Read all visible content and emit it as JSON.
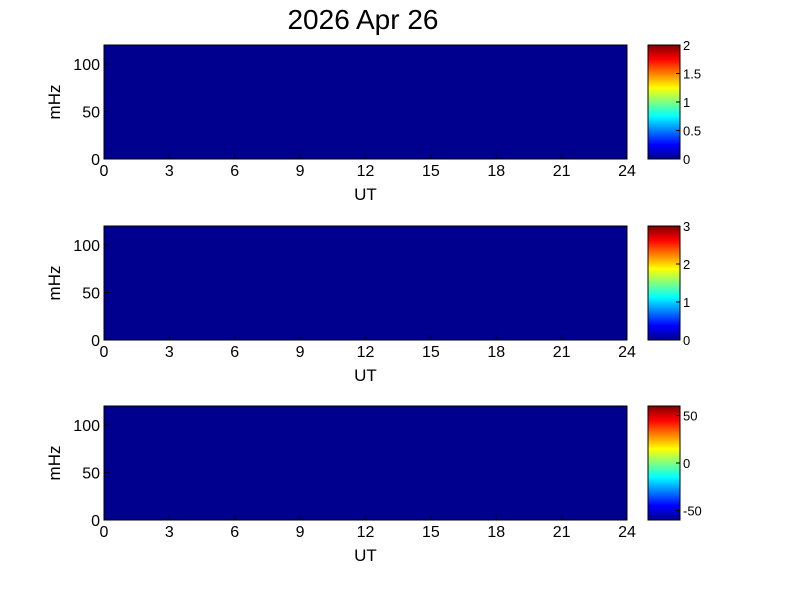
{
  "title": "2026 Apr 26",
  "colors": {
    "background": "#ffffff",
    "colormap": "jet",
    "jet_stops": [
      "#00008f",
      "#0000ff",
      "#00ffff",
      "#ffff00",
      "#ff0000",
      "#800000"
    ]
  },
  "chart_data": [
    {
      "type": "heatmap",
      "xlabel": "UT",
      "ylabel": "mHz",
      "xlim": [
        0,
        24
      ],
      "ylim": [
        0,
        120
      ],
      "xticks": [
        0,
        3,
        6,
        9,
        12,
        15,
        18,
        21,
        24
      ],
      "yticks": [
        0,
        50,
        100
      ],
      "z_uniform_value": 0,
      "colorbar": {
        "range": [
          0,
          2
        ],
        "ticks": [
          0,
          0.5,
          1,
          1.5,
          2
        ],
        "tick_labels": [
          "0",
          "0.5",
          "1",
          "1.5",
          "2"
        ]
      }
    },
    {
      "type": "heatmap",
      "xlabel": "UT",
      "ylabel": "mHz",
      "xlim": [
        0,
        24
      ],
      "ylim": [
        0,
        120
      ],
      "xticks": [
        0,
        3,
        6,
        9,
        12,
        15,
        18,
        21,
        24
      ],
      "yticks": [
        0,
        50,
        100
      ],
      "z_uniform_value": 0,
      "colorbar": {
        "range": [
          0,
          3
        ],
        "ticks": [
          0,
          1,
          2,
          3
        ],
        "tick_labels": [
          "0",
          "1",
          "2",
          "3"
        ]
      }
    },
    {
      "type": "heatmap",
      "xlabel": "UT",
      "ylabel": "mHz",
      "xlim": [
        0,
        24
      ],
      "ylim": [
        0,
        120
      ],
      "xticks": [
        0,
        3,
        6,
        9,
        12,
        15,
        18,
        21,
        24
      ],
      "yticks": [
        0,
        50,
        100
      ],
      "z_uniform_value": -60,
      "colorbar": {
        "range": [
          -60,
          60
        ],
        "ticks": [
          -50,
          0,
          50
        ],
        "tick_labels": [
          "-50",
          "0",
          "50"
        ]
      }
    }
  ]
}
